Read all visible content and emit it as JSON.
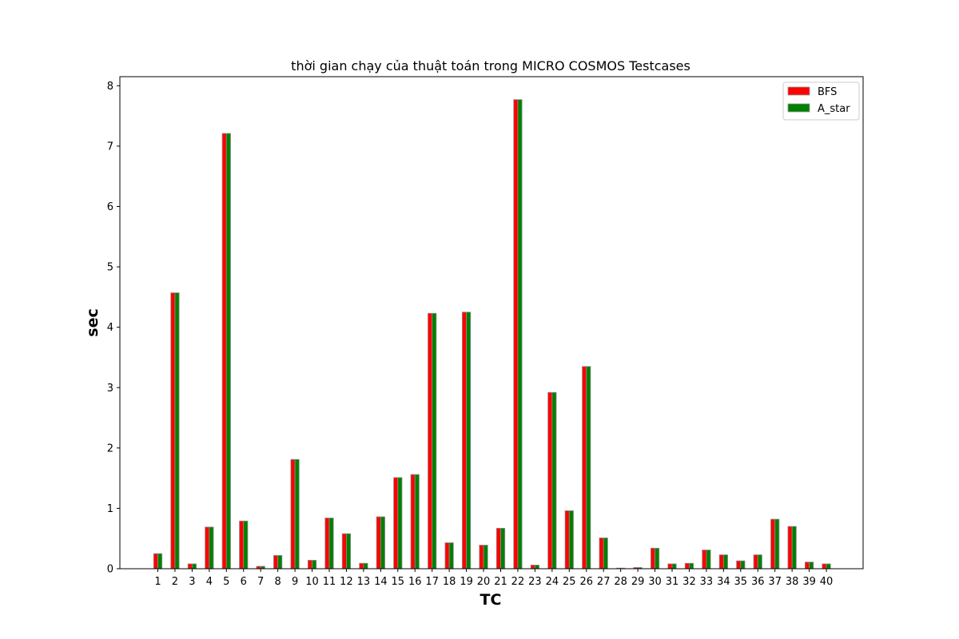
{
  "chart_data": {
    "type": "bar",
    "title": "thời gian chạy của thuật toán trong MICRO COSMOS Testcases",
    "xlabel": "TC",
    "ylabel": "sec",
    "ylim": [
      0,
      8.15
    ],
    "yticks": [
      "0",
      "1",
      "2",
      "3",
      "4",
      "5",
      "6",
      "7",
      "8"
    ],
    "grid": false,
    "legend_position": "top-right",
    "categories": [
      "1",
      "2",
      "3",
      "4",
      "5",
      "6",
      "7",
      "8",
      "9",
      "10",
      "11",
      "12",
      "13",
      "14",
      "15",
      "16",
      "17",
      "18",
      "19",
      "20",
      "21",
      "22",
      "23",
      "24",
      "25",
      "26",
      "27",
      "28",
      "29",
      "30",
      "31",
      "32",
      "33",
      "34",
      "35",
      "36",
      "37",
      "38",
      "39",
      "40"
    ],
    "series": [
      {
        "name": "BFS",
        "color": "#ff0000",
        "values": [
          0.25,
          4.57,
          0.08,
          0.69,
          7.21,
          0.79,
          0.04,
          0.22,
          1.81,
          0.14,
          0.84,
          0.58,
          0.09,
          0.86,
          1.51,
          1.56,
          4.23,
          0.43,
          4.25,
          0.39,
          0.67,
          7.77,
          0.06,
          2.92,
          0.96,
          3.35,
          0.51,
          0.01,
          0.02,
          0.34,
          0.08,
          0.09,
          0.31,
          0.23,
          0.13,
          0.23,
          0.82,
          0.7,
          0.11,
          0.08
        ]
      },
      {
        "name": "A_star",
        "color": "#008000",
        "values": [
          0.25,
          4.57,
          0.08,
          0.69,
          7.21,
          0.79,
          0.04,
          0.22,
          1.81,
          0.14,
          0.84,
          0.58,
          0.09,
          0.86,
          1.51,
          1.56,
          4.23,
          0.43,
          4.25,
          0.39,
          0.67,
          7.77,
          0.06,
          2.92,
          0.96,
          3.35,
          0.51,
          0.01,
          0.02,
          0.34,
          0.08,
          0.09,
          0.31,
          0.23,
          0.13,
          0.23,
          0.82,
          0.7,
          0.11,
          0.08
        ]
      }
    ]
  }
}
